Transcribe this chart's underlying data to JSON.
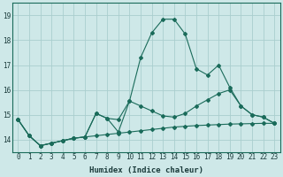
{
  "xlabel": "Humidex (Indice chaleur)",
  "background_color": "#cee8e8",
  "grid_color": "#aacece",
  "line_color": "#1a6b5a",
  "xlim": [
    -0.5,
    23.5
  ],
  "ylim": [
    13.5,
    19.5
  ],
  "yticks": [
    14,
    15,
    16,
    17,
    18,
    19
  ],
  "xticks": [
    0,
    1,
    2,
    3,
    4,
    5,
    6,
    7,
    8,
    9,
    10,
    11,
    12,
    13,
    14,
    15,
    16,
    17,
    18,
    19,
    20,
    21,
    22,
    23
  ],
  "series1_x": [
    0,
    1,
    2,
    3,
    4,
    5,
    6,
    7,
    8,
    9,
    10,
    11,
    12,
    13,
    14,
    15,
    16,
    17,
    18,
    19,
    20,
    21,
    22,
    23
  ],
  "series1_y": [
    14.8,
    14.15,
    13.75,
    13.85,
    13.95,
    14.05,
    14.1,
    15.05,
    14.85,
    14.8,
    15.55,
    17.3,
    18.3,
    18.85,
    18.85,
    18.25,
    16.85,
    16.6,
    17.0,
    16.1,
    15.35,
    15.0,
    14.9,
    14.65
  ],
  "series2_x": [
    0,
    1,
    2,
    3,
    4,
    5,
    6,
    7,
    8,
    9,
    10,
    11,
    12,
    13,
    14,
    15,
    16,
    17,
    18,
    19,
    20,
    21,
    22,
    23
  ],
  "series2_y": [
    14.8,
    14.15,
    13.75,
    13.85,
    13.95,
    14.05,
    14.1,
    15.05,
    14.85,
    14.3,
    15.55,
    15.35,
    15.15,
    14.95,
    14.9,
    15.05,
    15.35,
    15.6,
    15.85,
    16.0,
    15.35,
    15.0,
    14.9,
    14.65
  ],
  "series3_x": [
    0,
    1,
    2,
    3,
    4,
    5,
    6,
    7,
    8,
    9,
    10,
    11,
    12,
    13,
    14,
    15,
    16,
    17,
    18,
    19,
    20,
    21,
    22,
    23
  ],
  "series3_y": [
    14.8,
    14.15,
    13.75,
    13.85,
    13.95,
    14.05,
    14.1,
    14.15,
    14.2,
    14.25,
    14.3,
    14.35,
    14.4,
    14.45,
    14.5,
    14.53,
    14.56,
    14.58,
    14.6,
    14.62,
    14.63,
    14.64,
    14.65,
    14.65
  ]
}
